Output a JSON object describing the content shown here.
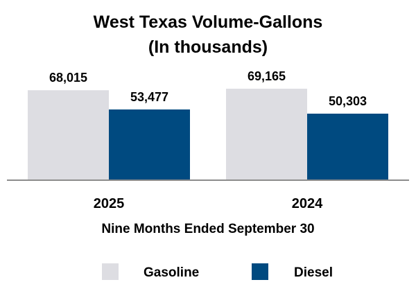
{
  "chart_data": {
    "type": "bar",
    "title": [
      "West Texas Volume-Gallons",
      "(In thousands)"
    ],
    "xlabel": "Nine Months Ended September 30",
    "ylabel": "",
    "categories": [
      "2025",
      "2024"
    ],
    "series": [
      {
        "name": "Gasoline",
        "color": "#dddde2",
        "values": [
          68015,
          69165
        ],
        "labels": [
          "68,015",
          "69,165"
        ]
      },
      {
        "name": "Diesel",
        "color": "#004a80",
        "values": [
          53477,
          50303
        ],
        "labels": [
          "53,477",
          "50,303"
        ]
      }
    ],
    "ylim": [
      0,
      70000
    ],
    "grid": false,
    "legend": "bottom"
  }
}
